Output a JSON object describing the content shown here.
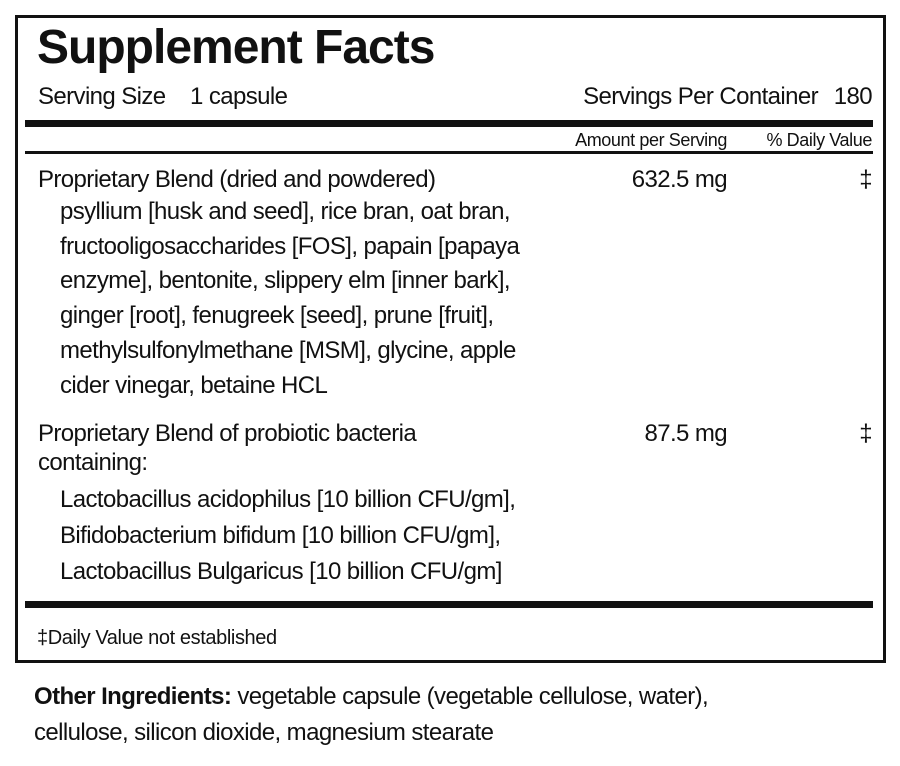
{
  "title": "Supplement Facts",
  "serving": {
    "size_label": "Serving Size",
    "size_value": "1 capsule",
    "per_container_label": "Servings Per Container",
    "per_container_value": "180"
  },
  "columns": {
    "amount": "Amount per Serving",
    "daily_value": "% Daily Value"
  },
  "rows": [
    {
      "name": [
        "Proprietary Blend (dried and powdered)"
      ],
      "details": [
        "psyllium [husk and seed], rice bran, oat bran,",
        "fructooligosaccharides [FOS], papain [papaya",
        "enzyme], bentonite, slippery elm [inner bark],",
        "ginger [root], fenugreek [seed], prune [fruit],",
        "methylsulfonylmethane [MSM], glycine, apple",
        "cider vinegar, betaine HCL"
      ],
      "amount": "632.5 mg",
      "daily_value": "‡"
    },
    {
      "name": [
        "Proprietary Blend of probiotic bacteria",
        "containing:"
      ],
      "details": [
        "Lactobacillus acidophilus [10 billion CFU/gm],",
        "Bifidobacterium bifidum [10 billion CFU/gm],",
        "Lactobacillus Bulgaricus [10 billion CFU/gm]"
      ],
      "amount": "87.5 mg",
      "daily_value": "‡"
    }
  ],
  "footnote": {
    "symbol": "‡",
    "text": "Daily Value not established"
  },
  "other_ingredients": {
    "label": "Other Ingredients:",
    "lines": [
      "vegetable capsule (vegetable cellulose, water),",
      "cellulose, silicon dioxide, magnesium stearate"
    ]
  }
}
